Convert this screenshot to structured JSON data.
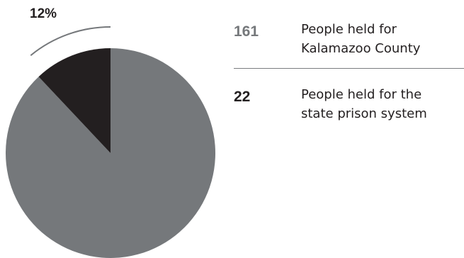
{
  "chart_data": {
    "type": "pie",
    "slices": [
      {
        "value": 161,
        "description": "People held for Kalamazoo County",
        "color": "#75787b"
      },
      {
        "value": 22,
        "description": "People held for the state prison system",
        "color": "#231f20"
      }
    ],
    "highlight_label": "12%",
    "legend_lines": [
      [
        "People held for",
        "Kalamazoo County"
      ],
      [
        "People held for the",
        "state prison system"
      ]
    ]
  }
}
